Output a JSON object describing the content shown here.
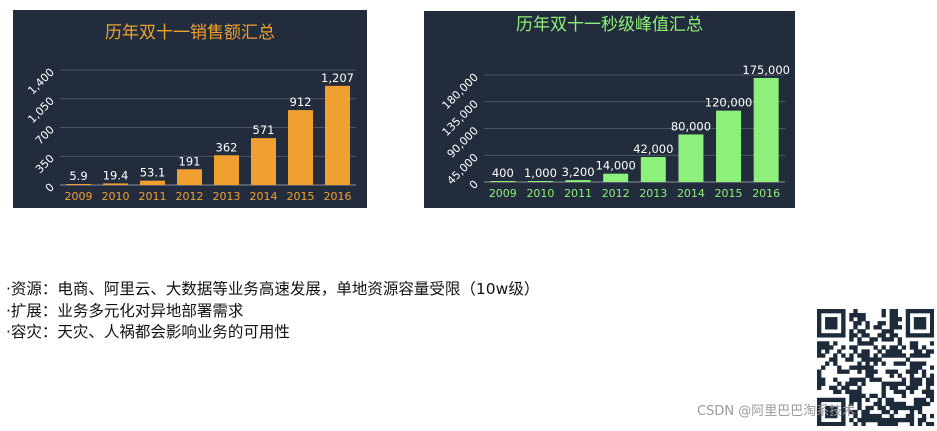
{
  "chart_data": [
    {
      "type": "bar",
      "title": "历年双十一销售额汇总",
      "categories": [
        "2009",
        "2010",
        "2011",
        "2012",
        "2013",
        "2014",
        "2015",
        "2016"
      ],
      "values": [
        5.9,
        19.4,
        53.1,
        191,
        362,
        571,
        912,
        1207
      ],
      "value_labels": [
        "5.9",
        "19.4",
        "53.1",
        "191",
        "362",
        "571",
        "912",
        "1,207"
      ],
      "yticks": [
        "0",
        "350",
        "700",
        "1,050",
        "1,400"
      ],
      "ylim": [
        0,
        1400
      ],
      "xlabel": "",
      "ylabel": "",
      "grid": true,
      "colors": {
        "bar": "#f0a030",
        "title": "#f0a030",
        "xtick": "#f0a030",
        "value_label": "#ffffff",
        "ytick": "#ffffff",
        "background": "#232c3d"
      }
    },
    {
      "type": "bar",
      "title": "历年双十一秒级峰值汇总",
      "categories": [
        "2009",
        "2010",
        "2011",
        "2012",
        "2013",
        "2014",
        "2015",
        "2016"
      ],
      "values": [
        400,
        1000,
        3200,
        14000,
        42000,
        80000,
        120000,
        175000
      ],
      "value_labels": [
        "400",
        "1,000",
        "3,200",
        "14,000",
        "42,000",
        "80,000",
        "120,000",
        "175,000"
      ],
      "yticks": [
        "0",
        "45,000",
        "90,000",
        "135,000",
        "180,000"
      ],
      "ylim": [
        0,
        180000
      ],
      "xlabel": "",
      "ylabel": "",
      "grid": true,
      "colors": {
        "bar": "#8cf07a",
        "title": "#8cf07a",
        "xtick": "#8cf07a",
        "value_label": "#ffffff",
        "ytick": "#ffffff",
        "background": "#232c3d"
      }
    }
  ],
  "bullets": [
    "·资源：电商、阿里云、大数据等业务高速发展，单地资源容量受限（10w级）",
    "·扩展：业务多元化对异地部署需求",
    "·容灾：天灾、人祸都会影响业务的可用性"
  ],
  "watermark": "CSDN @阿里巴巴淘系技术"
}
